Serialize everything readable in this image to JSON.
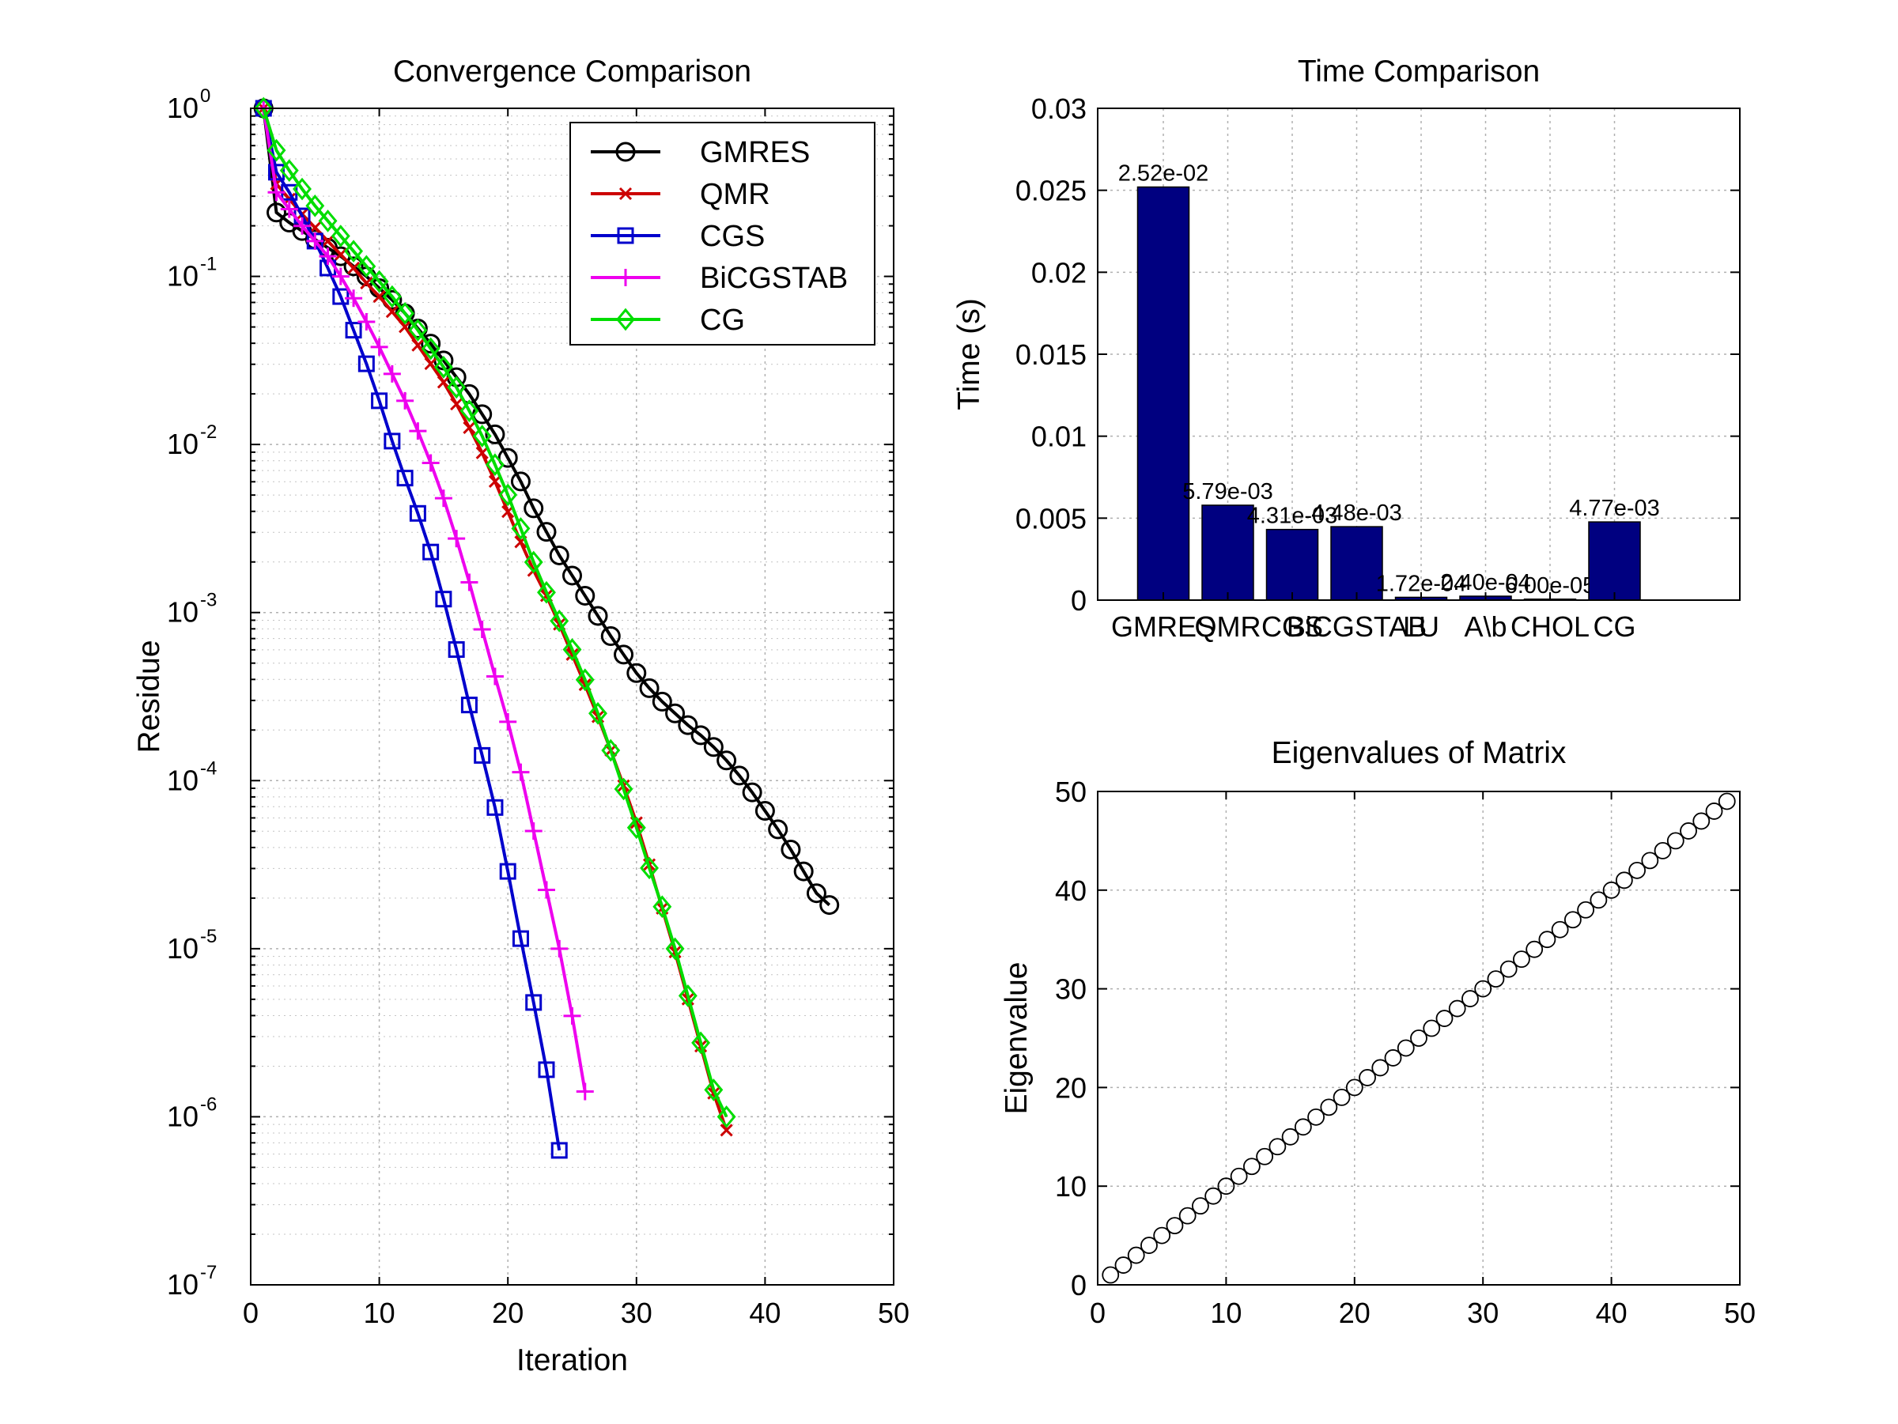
{
  "charts": [
    {
      "id": "convergence",
      "chart_data": {
        "type": "line",
        "title": "Convergence Comparison",
        "xlabel": "Iteration",
        "ylabel": "Residue",
        "xlim": [
          0,
          50
        ],
        "ylim_log10": [
          -7,
          0
        ],
        "y_scale": "log",
        "x_ticks": [
          "0",
          "10",
          "20",
          "30",
          "40",
          "50"
        ],
        "y_ticks": [
          {
            "base": "10",
            "exp": "0"
          },
          {
            "base": "10",
            "exp": "-1"
          },
          {
            "base": "10",
            "exp": "-2"
          },
          {
            "base": "10",
            "exp": "-3"
          },
          {
            "base": "10",
            "exp": "-4"
          },
          {
            "base": "10",
            "exp": "-5"
          },
          {
            "base": "10",
            "exp": "-6"
          },
          {
            "base": "10",
            "exp": "-7"
          }
        ],
        "grid": true,
        "legend_position": "top-right",
        "series": [
          {
            "name": "GMRES",
            "color": "#000000",
            "marker": "circle",
            "x_start": 1,
            "log10_y": [
              0,
              -0.62,
              -0.68,
              -0.73,
              -0.78,
              -0.83,
              -0.88,
              -0.94,
              -1.0,
              -1.07,
              -1.14,
              -1.22,
              -1.31,
              -1.4,
              -1.5,
              -1.6,
              -1.7,
              -1.82,
              -1.94,
              -2.08,
              -2.22,
              -2.38,
              -2.52,
              -2.66,
              -2.78,
              -2.9,
              -3.02,
              -3.14,
              -3.25,
              -3.36,
              -3.45,
              -3.53,
              -3.6,
              -3.67,
              -3.73,
              -3.8,
              -3.88,
              -3.97,
              -4.07,
              -4.18,
              -4.29,
              -4.41,
              -4.54,
              -4.67,
              -4.74
            ]
          },
          {
            "name": "QMR",
            "color": "#cc0000",
            "marker": "x",
            "x_start": 1,
            "log10_y": [
              0,
              -0.45,
              -0.54,
              -0.63,
              -0.71,
              -0.79,
              -0.87,
              -0.95,
              -1.04,
              -1.12,
              -1.21,
              -1.3,
              -1.41,
              -1.52,
              -1.63,
              -1.76,
              -1.9,
              -2.05,
              -2.22,
              -2.4,
              -2.58,
              -2.75,
              -2.9,
              -3.07,
              -3.25,
              -3.43,
              -3.62,
              -3.82,
              -4.03,
              -4.25,
              -4.5,
              -4.76,
              -5.02,
              -5.3,
              -5.58,
              -5.86,
              -6.08
            ]
          },
          {
            "name": "CGS",
            "color": "#0000cc",
            "marker": "square",
            "x_start": 1,
            "log10_y": [
              0,
              -0.38,
              -0.5,
              -0.64,
              -0.79,
              -0.95,
              -1.12,
              -1.32,
              -1.52,
              -1.74,
              -1.98,
              -2.2,
              -2.41,
              -2.64,
              -2.92,
              -3.22,
              -3.55,
              -3.85,
              -4.16,
              -4.54,
              -4.94,
              -5.32,
              -5.72,
              -6.2
            ]
          },
          {
            "name": "BiCGSTAB",
            "color": "#ee00ee",
            "marker": "plus",
            "x_start": 1,
            "log10_y": [
              0,
              -0.5,
              -0.6,
              -0.7,
              -0.79,
              -0.88,
              -1.0,
              -1.13,
              -1.27,
              -1.42,
              -1.58,
              -1.74,
              -1.92,
              -2.11,
              -2.32,
              -2.56,
              -2.82,
              -3.1,
              -3.38,
              -3.65,
              -3.95,
              -4.3,
              -4.65,
              -5.0,
              -5.4,
              -5.85
            ]
          },
          {
            "name": "CG",
            "color": "#00dd00",
            "marker": "diamond",
            "x_start": 1,
            "log10_y": [
              0,
              -0.25,
              -0.37,
              -0.48,
              -0.58,
              -0.67,
              -0.76,
              -0.85,
              -0.94,
              -1.03,
              -1.12,
              -1.22,
              -1.32,
              -1.43,
              -1.54,
              -1.66,
              -1.8,
              -1.95,
              -2.12,
              -2.3,
              -2.5,
              -2.7,
              -2.88,
              -3.05,
              -3.22,
              -3.4,
              -3.6,
              -3.82,
              -4.05,
              -4.28,
              -4.52,
              -4.75,
              -5.0,
              -5.28,
              -5.56,
              -5.84,
              -6.0
            ]
          }
        ]
      }
    },
    {
      "id": "time",
      "chart_data": {
        "type": "bar",
        "title": "Time Comparison",
        "xlabel": "",
        "ylabel": "Time (s)",
        "ylim": [
          0,
          0.03
        ],
        "y_ticks": [
          "0",
          "0.005",
          "0.01",
          "0.015",
          "0.02",
          "0.025",
          "0.03"
        ],
        "categories": [
          "GMRES",
          "QMR",
          "CGS",
          "BiCGSTAB",
          "LU",
          "A\\b",
          "CHOL",
          "CG"
        ],
        "values": [
          0.0252,
          0.00579,
          0.00431,
          0.00448,
          0.000172,
          0.00024,
          6e-05,
          0.00477
        ],
        "data_labels": [
          "2.52e-02",
          "5.79e-03",
          "4.31e-03",
          "4.48e-03",
          "1.72e-04",
          "2.40e-04",
          "6.00e-05",
          "4.77e-03"
        ],
        "bar_color": "#000080",
        "grid": true
      }
    },
    {
      "id": "eigen",
      "chart_data": {
        "type": "scatter",
        "title": "Eigenvalues of Matrix",
        "xlabel": "",
        "ylabel": "Eigenvalue",
        "xlim": [
          0,
          50
        ],
        "ylim": [
          0,
          50
        ],
        "x_ticks": [
          "0",
          "10",
          "20",
          "30",
          "40",
          "50"
        ],
        "y_ticks": [
          "0",
          "10",
          "20",
          "30",
          "40",
          "50"
        ],
        "marker": "circle",
        "color": "#000000",
        "x_values": [
          1,
          2,
          3,
          4,
          5,
          6,
          7,
          8,
          9,
          10,
          11,
          12,
          13,
          14,
          15,
          16,
          17,
          18,
          19,
          20,
          21,
          22,
          23,
          24,
          25,
          26,
          27,
          28,
          29,
          30,
          31,
          32,
          33,
          34,
          35,
          36,
          37,
          38,
          39,
          40,
          41,
          42,
          43,
          44,
          45,
          46,
          47,
          48,
          49
        ],
        "y_values": [
          1,
          2,
          3,
          4,
          5,
          6,
          7,
          8,
          9,
          10,
          11,
          12,
          13,
          14,
          15,
          16,
          17,
          18,
          19,
          20,
          21,
          22,
          23,
          24,
          25,
          26,
          27,
          28,
          29,
          30,
          31,
          32,
          33,
          34,
          35,
          36,
          37,
          38,
          39,
          40,
          41,
          42,
          43,
          44,
          45,
          46,
          47,
          48,
          49
        ],
        "grid": true
      }
    }
  ]
}
